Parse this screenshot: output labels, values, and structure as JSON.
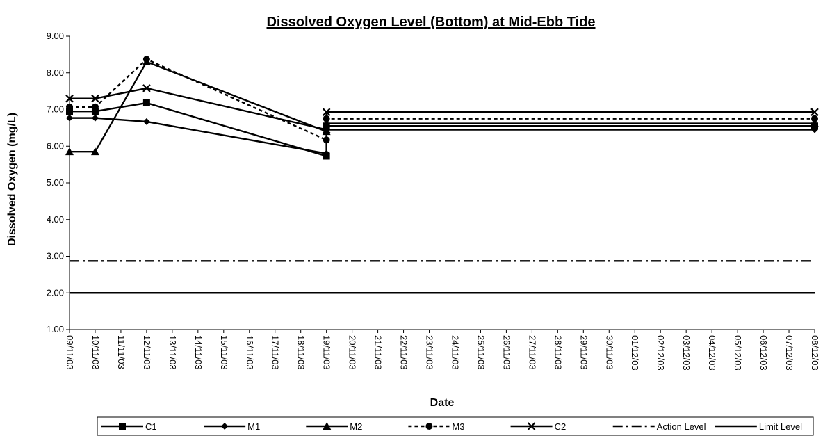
{
  "chart_data": {
    "type": "line",
    "title": "Dissolved Oxygen Level (Bottom) at Mid-Ebb Tide",
    "xlabel": "Date",
    "ylabel": "Dissolved Oxygen (mg/L)",
    "categories": [
      "09/11/03",
      "10/11/03",
      "11/11/03",
      "12/11/03",
      "13/11/03",
      "14/11/03",
      "15/11/03",
      "16/11/03",
      "17/11/03",
      "18/11/03",
      "19/11/03",
      "20/11/03",
      "21/11/03",
      "22/11/03",
      "23/11/03",
      "24/11/03",
      "25/11/03",
      "26/11/03",
      "27/11/03",
      "28/11/03",
      "29/11/03",
      "30/11/03",
      "01/12/03",
      "02/12/03",
      "03/12/03",
      "04/12/03",
      "05/12/03",
      "06/12/03",
      "07/12/03",
      "08/12/03"
    ],
    "ylim": [
      1,
      9
    ],
    "yticks": [
      {
        "value": 1,
        "label": "1.00"
      },
      {
        "value": 2,
        "label": "2.00"
      },
      {
        "value": 3,
        "label": "3.00"
      },
      {
        "value": 4,
        "label": "4.00"
      },
      {
        "value": 5,
        "label": "5.00"
      },
      {
        "value": 6,
        "label": "6.00"
      },
      {
        "value": 7,
        "label": "7.00"
      },
      {
        "value": 8,
        "label": "8.00"
      },
      {
        "value": 9,
        "label": "9.00"
      }
    ],
    "series": [
      {
        "name": "C1",
        "color": "#000000",
        "marker": "square",
        "dash": "solid",
        "x": [
          "09/11/03",
          "10/11/03",
          "12/11/03",
          "19/11/03",
          "19/11/03",
          "08/12/03"
        ],
        "values": [
          6.95,
          6.95,
          7.18,
          5.73,
          6.55,
          6.55
        ]
      },
      {
        "name": "M1",
        "color": "#000000",
        "marker": "diamond",
        "dash": "solid",
        "x": [
          "09/11/03",
          "10/11/03",
          "12/11/03",
          "19/11/03",
          "19/11/03",
          "08/12/03"
        ],
        "values": [
          6.77,
          6.77,
          6.67,
          5.8,
          6.45,
          6.45
        ]
      },
      {
        "name": "M2",
        "color": "#000000",
        "marker": "triangle",
        "dash": "solid",
        "x": [
          "09/11/03",
          "10/11/03",
          "12/11/03",
          "19/11/03",
          "19/11/03",
          "08/12/03"
        ],
        "values": [
          5.85,
          5.85,
          8.3,
          6.4,
          6.62,
          6.62
        ]
      },
      {
        "name": "M3",
        "color": "#000000",
        "marker": "circle",
        "dash": "dashed",
        "x": [
          "09/11/03",
          "10/11/03",
          "12/11/03",
          "19/11/03",
          "19/11/03",
          "08/12/03"
        ],
        "values": [
          7.07,
          7.07,
          8.37,
          6.17,
          6.75,
          6.75
        ]
      },
      {
        "name": "C2",
        "color": "#000000",
        "marker": "x",
        "dash": "solid",
        "x": [
          "09/11/03",
          "10/11/03",
          "12/11/03",
          "19/11/03",
          "19/11/03",
          "08/12/03"
        ],
        "values": [
          7.3,
          7.3,
          7.58,
          6.45,
          6.93,
          6.93
        ]
      },
      {
        "name": "Action Level",
        "color": "#000000",
        "marker": "none",
        "dash": "dashdot",
        "x": [
          "09/11/03",
          "08/12/03"
        ],
        "values": [
          2.87,
          2.87
        ]
      },
      {
        "name": "Limit Level",
        "color": "#000000",
        "marker": "none",
        "dash": "solid",
        "x": [
          "09/11/03",
          "08/12/03"
        ],
        "values": [
          2.0,
          2.0
        ]
      }
    ]
  }
}
